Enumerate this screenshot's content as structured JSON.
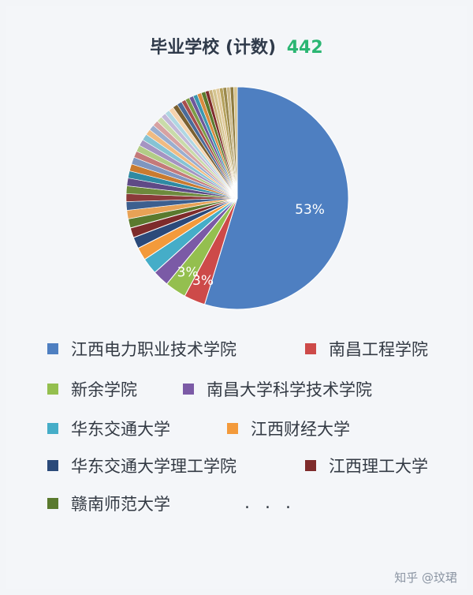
{
  "chart_data": {
    "type": "pie",
    "title": "毕业学校 (计数)",
    "total": "442",
    "series": [
      {
        "name": "江西电力职业技术学院",
        "value": 53,
        "color": "#4e7fc1"
      },
      {
        "name": "南昌工程学院",
        "value": 3,
        "color": "#cd4a49"
      },
      {
        "name": "新余学院",
        "value": 3,
        "color": "#94bf4f"
      },
      {
        "name": "南昌大学科学技术学院",
        "value": 2.3,
        "color": "#7b5aa6"
      },
      {
        "name": "华东交通大学",
        "value": 2.3,
        "color": "#45adc8"
      },
      {
        "name": "江西财经大学",
        "value": 1.8,
        "color": "#f39a3b"
      },
      {
        "name": "华东交通大学理工学院",
        "value": 1.6,
        "color": "#2b4a7a"
      },
      {
        "name": "江西理工大学",
        "value": 1.4,
        "color": "#7e2b2b"
      },
      {
        "name": "赣南师范大学",
        "value": 1.3,
        "color": "#5a7a2e"
      }
    ],
    "other_slices": [
      1.2,
      1.2,
      1.1,
      1.1,
      1.1,
      1.0,
      1.0,
      1.0,
      0.9,
      0.9,
      0.9,
      0.9,
      0.8,
      0.8,
      0.8,
      0.8,
      0.7,
      0.7,
      0.7,
      0.7,
      0.7,
      0.6,
      0.6,
      0.6,
      0.6,
      0.6,
      0.6,
      0.5,
      0.5,
      0.5,
      0.5,
      0.5,
      0.5,
      0.5,
      0.5,
      0.5
    ],
    "other_colors": [
      "#e8a256",
      "#3d5f8f",
      "#8b3a3a",
      "#6d8a3c",
      "#5f4a86",
      "#2f8aa3",
      "#c97b30",
      "#7f96bf",
      "#c47a7a",
      "#b2cc86",
      "#a594c2",
      "#86c3d4",
      "#f0bb82",
      "#9aaecf",
      "#d7a2a2",
      "#c9dba9",
      "#c3b8d8",
      "#b0d7e2",
      "#f5d3ad",
      "#7a6030",
      "#4a6b99",
      "#a84d4d",
      "#7c9c46",
      "#6e589a",
      "#3b98b0",
      "#d98b3e",
      "#5a7a2e",
      "#7e2b2b",
      "#c8b07a",
      "#d4c48f",
      "#e0c99b",
      "#b5a15c",
      "#9c8a4d",
      "#cbb98a",
      "#8e7b3f",
      "#d8c590"
    ],
    "data_labels": [
      "53%",
      "3%",
      "3%"
    ],
    "legend": {
      "items": [
        "江西电力职业技术学院",
        "南昌工程学院",
        "新余学院",
        "南昌大学科学技术学院",
        "华东交通大学",
        "江西财经大学",
        "华东交通大学理工学院",
        "江西理工大学",
        "赣南师范大学"
      ],
      "more": ". . ."
    }
  },
  "watermark": "知乎 @玟珺"
}
